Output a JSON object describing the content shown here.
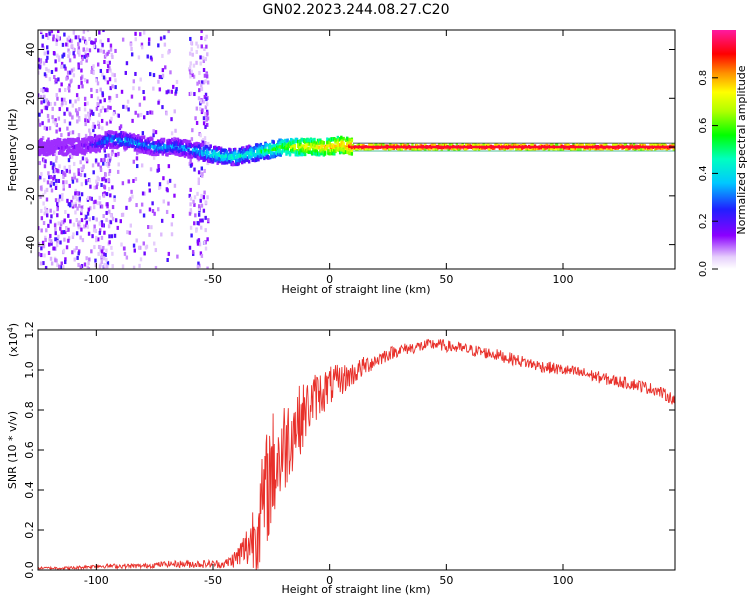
{
  "figure_title": "GN02.2023.244.08.27.C20",
  "colors": {
    "snr_line": "#e8302a",
    "axis": "#000000",
    "scatter_sparse": "#7a10e6"
  },
  "chart_data": [
    {
      "type": "heatmap",
      "title": "GN02.2023.244.08.27.C20",
      "xlabel": "Height of straight line (km)",
      "ylabel": "Frequency (Hz)",
      "xlim": [
        -125,
        148
      ],
      "ylim": [
        -50,
        48
      ],
      "x_ticks": [
        -100,
        -50,
        0,
        50,
        100
      ],
      "y_ticks": [
        -40,
        -20,
        0,
        20,
        40
      ],
      "colorbar": {
        "label": "Normalized spectral amplitude",
        "range": [
          0,
          1
        ],
        "ticks": [
          "0.0",
          "0.2",
          "0.4",
          "0.6",
          "0.8"
        ],
        "colormap": "rainbow (white-violet-blue-cyan-green-yellow-orange-red-magenta)"
      },
      "ridge": {
        "x": [
          -125,
          -110,
          -100,
          -95,
          -90,
          -85,
          -80,
          -75,
          -70,
          -65,
          -60,
          -55,
          -50,
          -45,
          -40,
          -35,
          -30,
          -25,
          -20,
          -15,
          -10,
          -5,
          0,
          5,
          10,
          15,
          50,
          100,
          148
        ],
        "y": [
          0,
          0,
          1,
          3,
          3,
          2,
          1,
          0,
          0,
          0,
          -1,
          -2,
          -3,
          -4,
          -4,
          -3,
          -2,
          -1,
          0,
          0,
          0,
          0,
          0,
          1,
          0,
          0,
          0,
          0,
          0
        ],
        "amplitude": [
          0.1,
          0.15,
          0.25,
          0.35,
          0.35,
          0.35,
          0.35,
          0.35,
          0.35,
          0.35,
          0.35,
          0.4,
          0.45,
          0.45,
          0.45,
          0.45,
          0.5,
          0.55,
          0.6,
          0.7,
          0.75,
          0.75,
          0.8,
          0.8,
          0.9,
          0.95,
          0.95,
          0.95,
          0.95
        ]
      }
    },
    {
      "type": "line",
      "xlabel": "Height of straight line (km)",
      "ylabel": "SNR (10 * v/v)",
      "y_multiplier": "(x10",
      "y_multiplier_exp": "4",
      "xlim": [
        -125,
        148
      ],
      "ylim": [
        0,
        1.2
      ],
      "x_ticks": [
        -100,
        -50,
        0,
        50,
        100
      ],
      "y_ticks": [
        "0.0",
        "0.2",
        "0.4",
        "0.6",
        "0.8",
        "1.0",
        "1.2"
      ],
      "series": [
        {
          "x": [
            -125,
            -110,
            -100,
            -90,
            -80,
            -70,
            -60,
            -50,
            -45,
            -40,
            -35,
            -30,
            -27,
            -25,
            -22,
            -20,
            -17,
            -15,
            -12,
            -10,
            -7,
            -5,
            -2,
            0,
            5,
            10,
            15,
            20,
            25,
            30,
            35,
            40,
            45,
            50,
            55,
            60,
            70,
            80,
            90,
            100,
            110,
            120,
            130,
            140,
            148
          ],
          "values": [
            0.01,
            0.01,
            0.02,
            0.02,
            0.02,
            0.03,
            0.03,
            0.03,
            0.03,
            0.06,
            0.12,
            0.25,
            0.4,
            0.5,
            0.55,
            0.6,
            0.68,
            0.72,
            0.76,
            0.8,
            0.85,
            0.88,
            0.9,
            0.92,
            0.95,
            0.98,
            1.02,
            1.05,
            1.08,
            1.1,
            1.11,
            1.12,
            1.13,
            1.12,
            1.11,
            1.1,
            1.08,
            1.05,
            1.02,
            1.0,
            0.98,
            0.95,
            0.93,
            0.9,
            0.85
          ],
          "noise": [
            0.005,
            0.008,
            0.01,
            0.012,
            0.012,
            0.015,
            0.02,
            0.02,
            0.02,
            0.05,
            0.12,
            0.25,
            0.3,
            0.3,
            0.28,
            0.25,
            0.22,
            0.2,
            0.17,
            0.15,
            0.13,
            0.12,
            0.11,
            0.1,
            0.08,
            0.06,
            0.05,
            0.04,
            0.035,
            0.03,
            0.03,
            0.03,
            0.03,
            0.03,
            0.03,
            0.03,
            0.03,
            0.03,
            0.03,
            0.03,
            0.03,
            0.03,
            0.03,
            0.03,
            0.03
          ]
        }
      ]
    }
  ]
}
